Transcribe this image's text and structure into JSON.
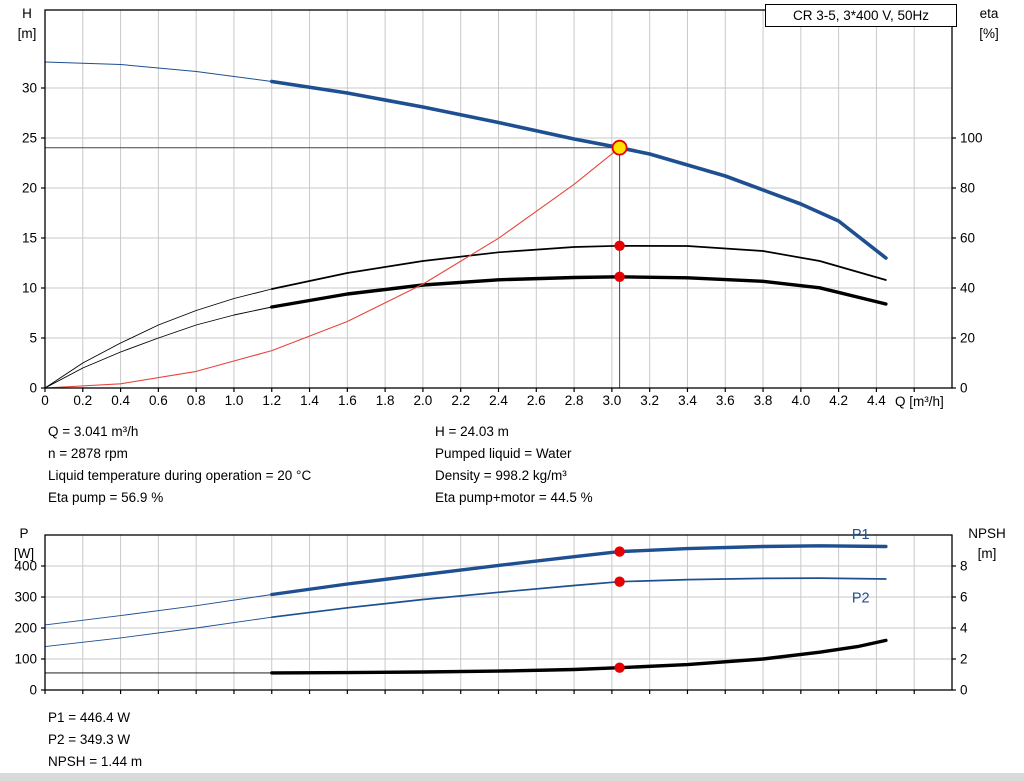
{
  "colors": {
    "blue": "#1d4f91",
    "black": "#000000",
    "red": "#e6463c",
    "grid": "#c9c9c9",
    "axis": "#000000",
    "ref": "#444444",
    "dot_red": "#e60000",
    "dot_yellow": "#ffe100"
  },
  "readouts": {
    "top_left": [
      "Q = 3.041 m³/h",
      "n = 2878 rpm",
      "Liquid temperature during operation = 20 °C",
      "Eta pump = 56.9 %"
    ],
    "top_right": [
      "H = 24.03 m",
      "Pumped liquid = Water",
      "Density = 998.2 kg/m³",
      "Eta pump+motor = 44.5 %"
    ],
    "bottom": [
      "P1 = 446.4 W",
      "P2 = 349.3 W",
      "NPSH = 1.44 m"
    ]
  },
  "chart_data": [
    {
      "type": "line",
      "title": "CR 3-5, 3*400 V, 50Hz",
      "xlabel": "Q [m³/h]",
      "ylabel_left_lines": [
        "H",
        "[m]"
      ],
      "ylabel_right_lines": [
        "eta",
        "[%]"
      ],
      "xlim": [
        0,
        4.8
      ],
      "ylim_left": [
        0,
        37.8
      ],
      "ylim_right": [
        0,
        151.2
      ],
      "geom": {
        "l": 45,
        "r": 952,
        "t": 10,
        "b": 388
      },
      "grid": true,
      "x_ticks": [
        0,
        0.2,
        0.4,
        0.6,
        0.8,
        1,
        1.2,
        1.4,
        1.6,
        1.8,
        2,
        2.2,
        2.4,
        2.6,
        2.8,
        3,
        3.2,
        3.4,
        3.6,
        3.8,
        4,
        4.2,
        4.4,
        4.6
      ],
      "x_tick_labels": [
        "0",
        "0.2",
        "0.4",
        "0.6",
        "0.8",
        "1.0",
        "1.2",
        "1.4",
        "1.6",
        "1.8",
        "2.0",
        "2.2",
        "2.4",
        "2.6",
        "2.8",
        "3.0",
        "3.2",
        "3.4",
        "3.6",
        "3.8",
        "4.0",
        "4.2",
        "4.4",
        ""
      ],
      "y_left_ticks": [
        0,
        5,
        10,
        15,
        20,
        25,
        30
      ],
      "y_left_tick_labels": [
        "0",
        "5",
        "10",
        "15",
        "20",
        "25",
        "30"
      ],
      "y_right_ticks": [
        0,
        20,
        40,
        60,
        80,
        100
      ],
      "y_right_tick_labels": [
        "0",
        "20",
        "40",
        "60",
        "80",
        "100"
      ],
      "ref_lines": [
        {
          "type": "h",
          "y": 24.03,
          "x1": 0,
          "x2": 3.041
        },
        {
          "type": "v",
          "x": 3.041,
          "y1": 0,
          "y2": 24.03
        }
      ],
      "series": [
        {
          "name": "head-lead",
          "color": "blue",
          "width": 1,
          "axis": "left",
          "points": [
            [
              0,
              32.6
            ],
            [
              0.4,
              32.35
            ],
            [
              0.8,
              31.65
            ],
            [
              1.2,
              30.65
            ]
          ]
        },
        {
          "name": "head",
          "color": "blue",
          "width": 3.6,
          "axis": "left",
          "points": [
            [
              1.2,
              30.65
            ],
            [
              1.6,
              29.5
            ],
            [
              2,
              28.1
            ],
            [
              2.4,
              26.55
            ],
            [
              2.8,
              24.9
            ],
            [
              3.041,
              24.03
            ],
            [
              3.2,
              23.4
            ],
            [
              3.6,
              21.2
            ],
            [
              4,
              18.4
            ],
            [
              4.2,
              16.7
            ],
            [
              4.45,
              13
            ]
          ]
        },
        {
          "name": "eta-pump-lead",
          "color": "black",
          "width": 0.9,
          "axis": "right",
          "points": [
            [
              0,
              0
            ],
            [
              0.2,
              10
            ],
            [
              0.4,
              18
            ],
            [
              0.6,
              25.2
            ],
            [
              0.8,
              31
            ],
            [
              1,
              35.8
            ],
            [
              1.2,
              39.6
            ]
          ]
        },
        {
          "name": "eta-pump",
          "color": "black",
          "width": 1.7,
          "axis": "right",
          "points": [
            [
              1.2,
              39.6
            ],
            [
              1.6,
              46
            ],
            [
              2,
              50.8
            ],
            [
              2.4,
              54.3
            ],
            [
              2.8,
              56.4
            ],
            [
              3.041,
              56.9
            ],
            [
              3.4,
              56.8
            ],
            [
              3.8,
              54.8
            ],
            [
              4.1,
              50.8
            ],
            [
              4.45,
              43.2
            ]
          ]
        },
        {
          "name": "eta-pump-motor-lead",
          "color": "black",
          "width": 0.9,
          "axis": "right",
          "points": [
            [
              0,
              0
            ],
            [
              0.2,
              8
            ],
            [
              0.4,
              14.4
            ],
            [
              0.6,
              20
            ],
            [
              0.8,
              25.2
            ],
            [
              1,
              29.2
            ],
            [
              1.2,
              32.4
            ]
          ]
        },
        {
          "name": "eta-pump-motor",
          "color": "black",
          "width": 3.4,
          "axis": "right",
          "points": [
            [
              1.2,
              32.4
            ],
            [
              1.6,
              37.6
            ],
            [
              2,
              41.2
            ],
            [
              2.4,
              43.3
            ],
            [
              2.8,
              44.2
            ],
            [
              3.041,
              44.5
            ],
            [
              3.4,
              44.1
            ],
            [
              3.8,
              42.7
            ],
            [
              4.1,
              40.1
            ],
            [
              4.45,
              33.6
            ]
          ]
        },
        {
          "name": "system-curve",
          "color": "red",
          "width": 1.1,
          "axis": "left",
          "points": [
            [
              0,
              0
            ],
            [
              0.4,
              0.42
            ],
            [
              0.8,
              1.66
            ],
            [
              1.2,
              3.74
            ],
            [
              1.6,
              6.65
            ],
            [
              2,
              10.39
            ],
            [
              2.4,
              14.97
            ],
            [
              2.8,
              20.37
            ],
            [
              3.041,
              24.03
            ]
          ]
        }
      ],
      "markers": [
        {
          "x": 3.041,
          "y": 56.9,
          "axis": "right",
          "kind": "dot"
        },
        {
          "x": 3.041,
          "y": 44.5,
          "axis": "right",
          "kind": "dot"
        },
        {
          "x": 3.041,
          "y": 24.03,
          "axis": "left",
          "kind": "duty"
        }
      ]
    },
    {
      "type": "line",
      "xlabel": "",
      "ylabel_left_lines": [
        "P",
        "[W]"
      ],
      "ylabel_right_lines": [
        "NPSH",
        "[m]"
      ],
      "xlim": [
        0,
        4.8
      ],
      "ylim_left": [
        0,
        500
      ],
      "ylim_right": [
        0,
        10
      ],
      "geom": {
        "l": 45,
        "r": 952,
        "t": 15,
        "b": 170
      },
      "grid": true,
      "x_ticks": [
        0,
        0.2,
        0.4,
        0.6,
        0.8,
        1,
        1.2,
        1.4,
        1.6,
        1.8,
        2,
        2.2,
        2.4,
        2.6,
        2.8,
        3,
        3.2,
        3.4,
        3.6,
        3.8,
        4,
        4.2,
        4.4,
        4.6
      ],
      "y_left_ticks": [
        0,
        100,
        200,
        300,
        400
      ],
      "y_left_tick_labels": [
        "0",
        "100",
        "200",
        "300",
        "400"
      ],
      "y_right_ticks": [
        0,
        2,
        4,
        6,
        8
      ],
      "y_right_tick_labels": [
        "0",
        "2",
        "4",
        "6",
        "8"
      ],
      "series": [
        {
          "name": "p1-lead",
          "color": "blue",
          "width": 0.9,
          "axis": "left",
          "points": [
            [
              0,
              210
            ],
            [
              0.4,
              240
            ],
            [
              0.8,
              272
            ],
            [
              1.2,
              308
            ]
          ]
        },
        {
          "name": "p1",
          "color": "blue",
          "width": 3.4,
          "axis": "left",
          "points": [
            [
              1.2,
              308
            ],
            [
              1.6,
              342
            ],
            [
              2,
              372
            ],
            [
              2.4,
              402
            ],
            [
              2.8,
              430
            ],
            [
              3.041,
              446.4
            ],
            [
              3.4,
              456
            ],
            [
              3.8,
              463
            ],
            [
              4.1,
              465
            ],
            [
              4.45,
              463
            ]
          ]
        },
        {
          "name": "p2-lead",
          "color": "blue",
          "width": 0.9,
          "axis": "left",
          "points": [
            [
              0,
              140
            ],
            [
              0.4,
              168
            ],
            [
              0.8,
              200
            ],
            [
              1.2,
              235
            ]
          ]
        },
        {
          "name": "p2",
          "color": "blue",
          "width": 1.7,
          "axis": "left",
          "points": [
            [
              1.2,
              235
            ],
            [
              1.6,
              265
            ],
            [
              2,
              292
            ],
            [
              2.4,
              315
            ],
            [
              2.8,
              337
            ],
            [
              3.041,
              349.3
            ],
            [
              3.4,
              356
            ],
            [
              3.8,
              360
            ],
            [
              4.1,
              361
            ],
            [
              4.45,
              358
            ]
          ]
        },
        {
          "name": "npsh-lead",
          "color": "black",
          "width": 0.9,
          "axis": "right",
          "points": [
            [
              0,
              1.1
            ],
            [
              0.6,
              1.1
            ],
            [
              1.2,
              1.1
            ]
          ]
        },
        {
          "name": "npsh",
          "color": "black",
          "width": 3.4,
          "axis": "right",
          "points": [
            [
              1.2,
              1.1
            ],
            [
              1.6,
              1.12
            ],
            [
              2,
              1.16
            ],
            [
              2.4,
              1.22
            ],
            [
              2.8,
              1.32
            ],
            [
              3.041,
              1.44
            ],
            [
              3.4,
              1.64
            ],
            [
              3.8,
              2
            ],
            [
              4.1,
              2.44
            ],
            [
              4.3,
              2.8
            ],
            [
              4.45,
              3.2
            ]
          ]
        }
      ],
      "annotations": [
        {
          "text": "P1",
          "x": 4.27,
          "y": 487,
          "axis": "left",
          "color": "blue"
        },
        {
          "text": "P2",
          "x": 4.27,
          "y": 283,
          "axis": "left",
          "color": "blue"
        }
      ],
      "markers": [
        {
          "x": 3.041,
          "y": 446.4,
          "axis": "left",
          "kind": "dot"
        },
        {
          "x": 3.041,
          "y": 349.3,
          "axis": "left",
          "kind": "dot"
        },
        {
          "x": 3.041,
          "y": 1.44,
          "axis": "right",
          "kind": "dot"
        }
      ]
    }
  ]
}
